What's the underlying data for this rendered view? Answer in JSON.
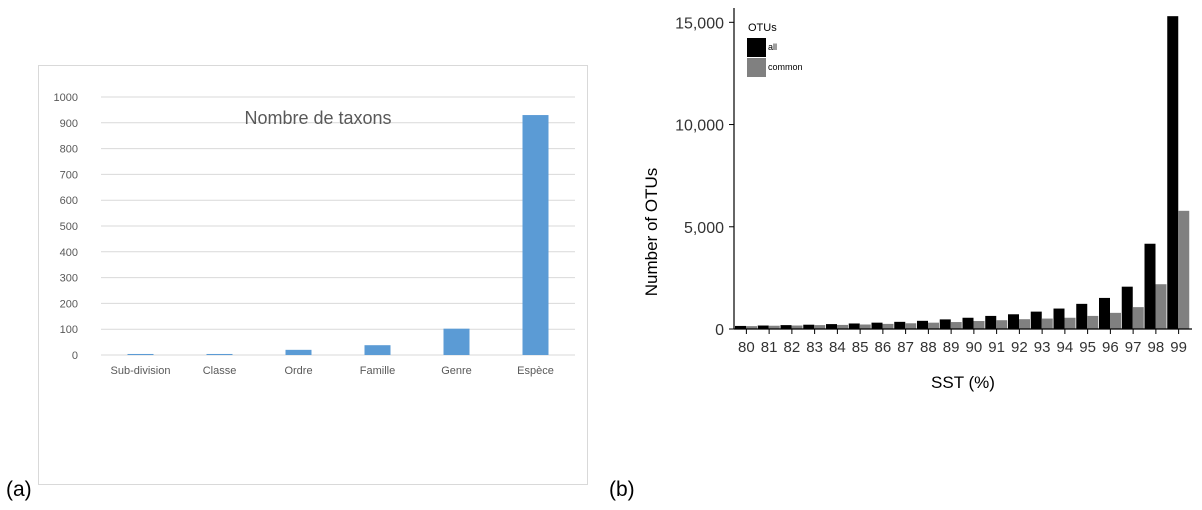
{
  "panels": {
    "a": "(a)",
    "b": "(b)"
  },
  "chart_data": [
    {
      "type": "bar",
      "title": "Nombre de taxons",
      "categories": [
        "Sub-division",
        "Classe",
        "Ordre",
        "Famille",
        "Genre",
        "Espèce"
      ],
      "values": [
        4,
        4,
        20,
        38,
        102,
        930
      ],
      "ylim": [
        0,
        1000
      ],
      "yticks": [
        0,
        100,
        200,
        300,
        400,
        500,
        600,
        700,
        800,
        900,
        1000
      ],
      "xlabel": "",
      "ylabel": "",
      "grid": true,
      "colors": {
        "bar": "#5b9bd5",
        "grid": "#d9d9d9",
        "border": "#d9d9d9",
        "text": "#595959"
      }
    },
    {
      "type": "bar",
      "categories": [
        "80",
        "81",
        "82",
        "83",
        "84",
        "85",
        "86",
        "87",
        "88",
        "89",
        "90",
        "91",
        "92",
        "93",
        "94",
        "95",
        "96",
        "97",
        "98",
        "99"
      ],
      "series": [
        {
          "name": "all",
          "values": [
            150,
            170,
            190,
            210,
            240,
            270,
            310,
            350,
            400,
            470,
            550,
            640,
            720,
            850,
            1000,
            1230,
            1520,
            2070,
            4170,
            15300
          ]
        },
        {
          "name": "common",
          "values": [
            140,
            160,
            170,
            190,
            200,
            220,
            250,
            280,
            310,
            340,
            390,
            430,
            480,
            510,
            550,
            640,
            790,
            1070,
            2190,
            5780
          ]
        }
      ],
      "xlabel": "SST (%)",
      "ylabel": "Number of OTUs",
      "ylim": [
        0,
        15700
      ],
      "yticks": [
        0,
        5000,
        10000,
        15000
      ],
      "ytick_labels": [
        "0",
        "5,000",
        "10,000",
        "15,000"
      ],
      "legend": {
        "title": "OTUs",
        "placement": "top-left"
      },
      "colors": {
        "all": "#000000",
        "common": "#808080",
        "axis": "#000000",
        "text": "#333333"
      }
    }
  ]
}
